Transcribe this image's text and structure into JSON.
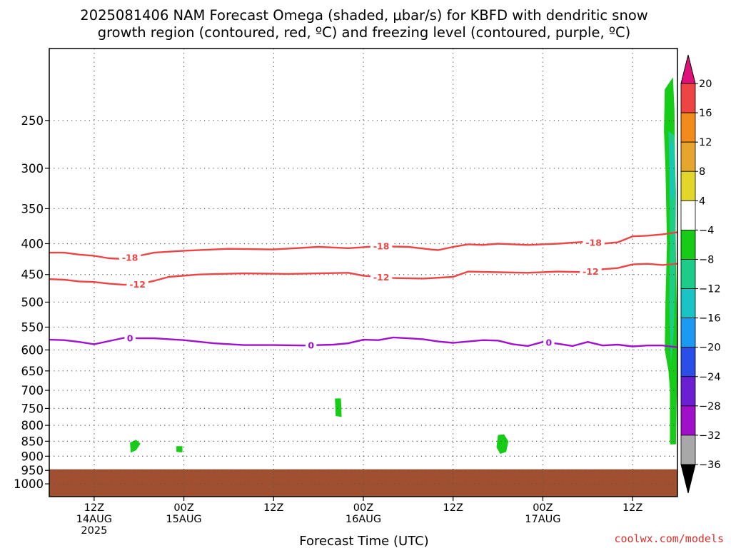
{
  "chart_data": {
    "type": "time-height contour",
    "title_line1": "2025081406 NAM Forecast Omega (shaded, μbar/s) for KBFD with dendritic snow",
    "title_line2": "growth region (contoured, red, ºC) and freezing level (contoured, purple, ºC)",
    "xlabel": "Forecast Time (UTC)",
    "credit": "coolwx.com/models",
    "y_axis": {
      "scale": "log-pressure",
      "inverted": true,
      "range_mb": [
        1050,
        190
      ],
      "ticks": [
        "250",
        "300",
        "350",
        "400",
        "450",
        "500",
        "550",
        "600",
        "650",
        "700",
        "750",
        "800",
        "850",
        "900",
        "950",
        "1000"
      ]
    },
    "x_axis": {
      "range_hours": [
        6,
        90
      ],
      "ticks": [
        {
          "hour": 12,
          "lines": [
            "12Z",
            "14AUG",
            "2025"
          ]
        },
        {
          "hour": 24,
          "lines": [
            "00Z",
            "15AUG"
          ]
        },
        {
          "hour": 36,
          "lines": [
            "12Z"
          ]
        },
        {
          "hour": 48,
          "lines": [
            "00Z",
            "16AUG"
          ]
        },
        {
          "hour": 60,
          "lines": [
            "12Z"
          ]
        },
        {
          "hour": 72,
          "lines": [
            "00Z",
            "17AUG"
          ]
        },
        {
          "hour": 84,
          "lines": [
            "12Z"
          ]
        }
      ]
    },
    "grid": true,
    "colorbar": {
      "unit": "μbar/s",
      "labels": [
        "20",
        "16",
        "12",
        "8",
        "4",
        "−4",
        "−8",
        "−12",
        "−16",
        "−20",
        "−24",
        "−28",
        "−32",
        "−36"
      ],
      "bins": [
        {
          "from": 16,
          "to": 20,
          "color": "#ef4444"
        },
        {
          "from": 12,
          "to": 16,
          "color": "#f28a1c"
        },
        {
          "from": 8,
          "to": 12,
          "color": "#e6a62e"
        },
        {
          "from": 4,
          "to": 8,
          "color": "#e2d62a"
        },
        {
          "from": -4,
          "to": 4,
          "color": "#ffffff"
        },
        {
          "from": -8,
          "to": -4,
          "color": "#16cc16"
        },
        {
          "from": -12,
          "to": -8,
          "color": "#1ccc88"
        },
        {
          "from": -16,
          "to": -12,
          "color": "#19c4c4"
        },
        {
          "from": -20,
          "to": -16,
          "color": "#1a9af0"
        },
        {
          "from": -24,
          "to": -20,
          "color": "#2a4ee6"
        },
        {
          "from": -28,
          "to": -24,
          "color": "#6a1fd2"
        },
        {
          "from": -32,
          "to": -28,
          "color": "#a010c8"
        },
        {
          "from": -36,
          "to": -32,
          "color": "#a8a8a8"
        }
      ],
      "top_triangle_color": "#e0107a",
      "bottom_triangle_color": "#000000"
    },
    "series": [
      {
        "name": "-18",
        "color": "#ef4444",
        "points": [
          [
            6,
            414
          ],
          [
            8,
            414
          ],
          [
            10,
            417
          ],
          [
            12,
            419
          ],
          [
            14,
            423
          ],
          [
            16,
            424
          ],
          [
            18,
            419
          ],
          [
            20,
            414
          ],
          [
            24,
            411
          ],
          [
            30,
            408
          ],
          [
            36,
            409
          ],
          [
            42,
            405
          ],
          [
            46,
            407
          ],
          [
            50,
            404
          ],
          [
            54,
            405
          ],
          [
            57,
            409
          ],
          [
            58,
            410
          ],
          [
            60,
            405
          ],
          [
            62,
            401
          ],
          [
            64,
            402
          ],
          [
            66,
            400
          ],
          [
            70,
            402
          ],
          [
            74,
            400
          ],
          [
            78,
            397
          ],
          [
            80,
            400
          ],
          [
            82,
            398
          ],
          [
            84,
            389
          ],
          [
            86,
            388
          ],
          [
            88,
            386
          ],
          [
            90,
            383
          ]
        ],
        "labels": [
          {
            "hour": 16.8,
            "text": "-18"
          },
          {
            "hour": 50.4,
            "text": "-18"
          },
          {
            "hour": 78.8,
            "text": "-18"
          }
        ]
      },
      {
        "name": "-12",
        "color": "#ef4444",
        "points": [
          [
            6,
            458
          ],
          [
            8,
            459
          ],
          [
            10,
            462
          ],
          [
            12,
            463
          ],
          [
            14,
            466
          ],
          [
            16,
            468
          ],
          [
            18,
            467
          ],
          [
            20,
            461
          ],
          [
            22,
            454
          ],
          [
            26,
            450
          ],
          [
            32,
            448
          ],
          [
            38,
            449
          ],
          [
            42,
            448
          ],
          [
            46,
            447
          ],
          [
            48,
            452
          ],
          [
            52,
            456
          ],
          [
            56,
            457
          ],
          [
            60,
            454
          ],
          [
            62,
            445
          ],
          [
            66,
            446
          ],
          [
            70,
            447
          ],
          [
            74,
            445
          ],
          [
            78,
            446
          ],
          [
            80,
            441
          ],
          [
            82,
            439
          ],
          [
            84,
            433
          ],
          [
            86,
            432
          ],
          [
            88,
            434
          ],
          [
            90,
            432
          ]
        ],
        "labels": [
          {
            "hour": 17.8,
            "text": "-12"
          },
          {
            "hour": 50.4,
            "text": "-12"
          },
          {
            "hour": 78.4,
            "text": "-12"
          }
        ]
      },
      {
        "name": "0",
        "color": "#a010d0",
        "points": [
          [
            6,
            577
          ],
          [
            8,
            578
          ],
          [
            10,
            582
          ],
          [
            12,
            587
          ],
          [
            14,
            580
          ],
          [
            16,
            573
          ],
          [
            18,
            574
          ],
          [
            20,
            574
          ],
          [
            24,
            578
          ],
          [
            28,
            585
          ],
          [
            32,
            589
          ],
          [
            36,
            589
          ],
          [
            40,
            590
          ],
          [
            44,
            588
          ],
          [
            46,
            585
          ],
          [
            48,
            577
          ],
          [
            50,
            578
          ],
          [
            52,
            572
          ],
          [
            54,
            574
          ],
          [
            56,
            576
          ],
          [
            58,
            581
          ],
          [
            60,
            584
          ],
          [
            64,
            578
          ],
          [
            66,
            579
          ],
          [
            68,
            587
          ],
          [
            70,
            591
          ],
          [
            72,
            582
          ],
          [
            74,
            586
          ],
          [
            76,
            591
          ],
          [
            78,
            582
          ],
          [
            80,
            590
          ],
          [
            82,
            588
          ],
          [
            84,
            592
          ],
          [
            86,
            590
          ],
          [
            88,
            590
          ],
          [
            90,
            594
          ]
        ],
        "labels": [
          {
            "hour": 16.8,
            "text": "0"
          },
          {
            "hour": 41,
            "text": "0"
          },
          {
            "hour": 72.8,
            "text": "0"
          }
        ]
      }
    ],
    "omega_shading": [
      {
        "bin": "-8..-4",
        "color": "#16cc16",
        "points": [
          [
            88.3,
            222
          ],
          [
            89.4,
            212
          ],
          [
            89.6,
            240
          ],
          [
            89.8,
            420
          ],
          [
            90,
            600
          ],
          [
            89.8,
            860
          ],
          [
            89.0,
            860
          ],
          [
            89.0,
            700
          ],
          [
            88.8,
            650
          ],
          [
            88.3,
            600
          ],
          [
            88.4,
            500
          ],
          [
            88.6,
            400
          ],
          [
            88.4,
            300
          ],
          [
            88.2,
            260
          ]
        ]
      },
      {
        "bin": "-12..-8",
        "color": "#1ccc88",
        "points": [
          [
            88.8,
            260
          ],
          [
            89.6,
            265
          ],
          [
            89.8,
            330
          ],
          [
            89.7,
            460
          ],
          [
            89.5,
            560
          ],
          [
            89.1,
            640
          ],
          [
            88.9,
            500
          ],
          [
            89.0,
            400
          ],
          [
            88.9,
            300
          ]
        ]
      },
      {
        "bin": "-16..-12",
        "color": "#19c4c4",
        "points": [
          [
            89.0,
            270
          ],
          [
            89.4,
            275
          ],
          [
            89.5,
            330
          ],
          [
            89.1,
            340
          ],
          [
            89.0,
            300
          ]
        ]
      },
      {
        "bin": "-8..-4",
        "color": "#16cc16",
        "points": [
          [
            16.8,
            855
          ],
          [
            17.6,
            845
          ],
          [
            18.2,
            858
          ],
          [
            17.6,
            880
          ],
          [
            16.9,
            888
          ]
        ]
      },
      {
        "bin": "-8..-4",
        "color": "#16cc16",
        "points": [
          [
            23.0,
            866
          ],
          [
            23.8,
            866
          ],
          [
            23.8,
            887
          ],
          [
            23.0,
            885
          ]
        ]
      },
      {
        "bin": "-8..-4",
        "color": "#16cc16",
        "points": [
          [
            44.2,
            722
          ],
          [
            45.0,
            722
          ],
          [
            45.1,
            775
          ],
          [
            44.3,
            772
          ]
        ]
      },
      {
        "bin": "-8..-4",
        "color": "#16cc16",
        "points": [
          [
            66.0,
            830
          ],
          [
            66.8,
            828
          ],
          [
            67.4,
            850
          ],
          [
            67.1,
            885
          ],
          [
            66.3,
            892
          ],
          [
            65.8,
            870
          ]
        ]
      }
    ],
    "terrain": {
      "color": "#a05030",
      "surface_mb": 946
    }
  }
}
